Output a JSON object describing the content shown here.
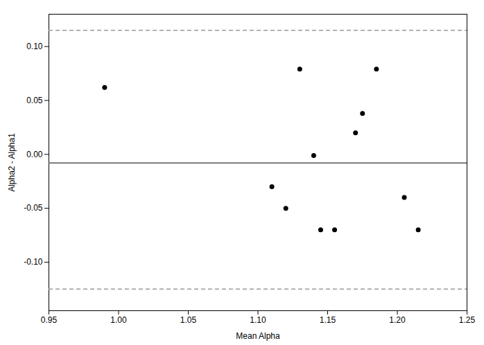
{
  "chart_data": {
    "type": "scatter",
    "xlabel": "Mean Alpha",
    "ylabel": "Alpha2 - Alpha1",
    "x": [
      0.99,
      1.13,
      1.14,
      1.11,
      1.12,
      1.145,
      1.155,
      1.17,
      1.175,
      1.185,
      1.205,
      1.215
    ],
    "values": [
      0.062,
      0.079,
      -0.001,
      -0.03,
      -0.05,
      -0.07,
      -0.07,
      0.02,
      0.038,
      0.079,
      -0.04,
      -0.07
    ],
    "color": "black",
    "marker": "circle",
    "reference_lines": [
      {
        "value": -0.008,
        "color": "#555555",
        "line_style": "solid"
      },
      {
        "value": 0.115,
        "color": "#999999",
        "line_style": "dashed"
      },
      {
        "value": -0.125,
        "color": "#999999",
        "line_style": "dashed"
      }
    ],
    "xlim": [
      0.95,
      1.25
    ],
    "ylim": [
      -0.145,
      0.13
    ],
    "xticks": [
      0.95,
      {
        "value": 1.0,
        "label": "1.00"
      },
      1.05,
      {
        "value": 1.1,
        "label": "1.10"
      },
      1.15,
      {
        "value": 1.2,
        "label": "1.20"
      },
      1.25
    ],
    "yticks": [
      {
        "value": -0.1,
        "label": "-0.10"
      },
      -0.05,
      {
        "value": 0.0,
        "label": "0.00"
      },
      0.05,
      {
        "value": 0.1,
        "label": "0.10"
      }
    ],
    "grid": false
  }
}
